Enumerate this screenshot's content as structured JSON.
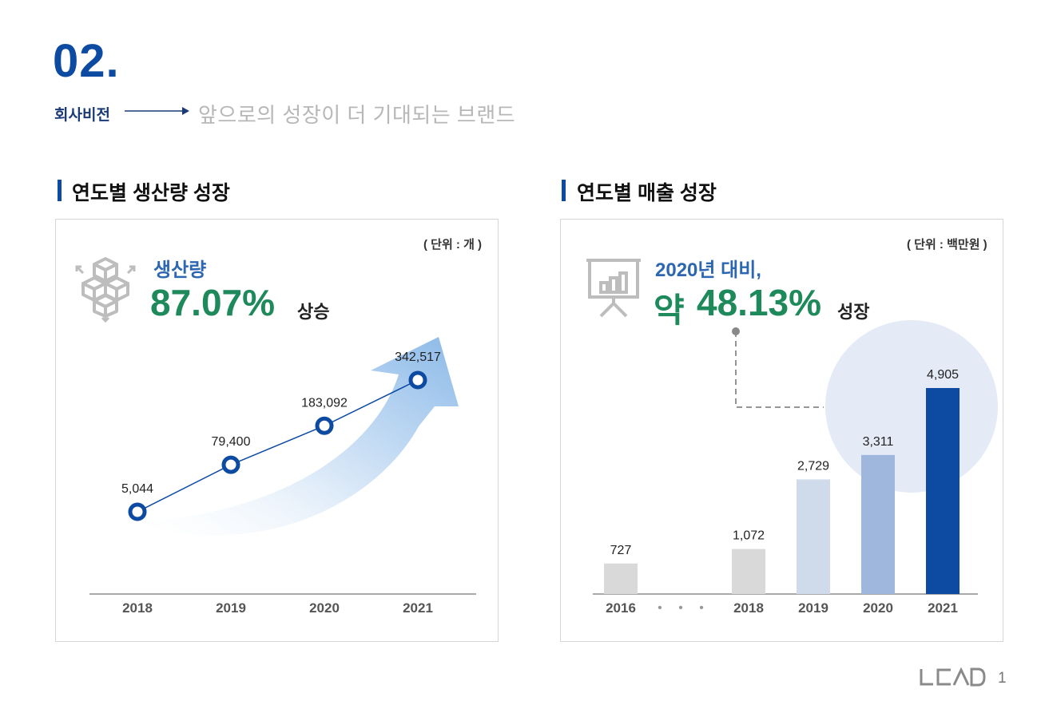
{
  "header": {
    "section_number": "02.",
    "vision_label": "회사비전",
    "vision_text": "앞으로의 성장이 더 기대되는 브랜드"
  },
  "left": {
    "title": "연도별 생산량 성장",
    "unit": "( 단위 : 개 )",
    "kpi_label": "생산량",
    "kpi_value": "87.07%",
    "kpi_suffix": "상승",
    "icon": "boxes-icon"
  },
  "right": {
    "title": "연도별 매출 성장",
    "unit": "( 단위 : 백만원 )",
    "kpi_label": "2020년 대비,",
    "kpi_prefix": "약",
    "kpi_value": "48.13%",
    "kpi_suffix": "성장",
    "icon": "presentation-board-icon",
    "ellipsis": "• • •"
  },
  "footer": {
    "logo": "LCAD",
    "page": "1"
  },
  "colors": {
    "brand_blue": "#0d4aa1",
    "kpi_green": "#1e8a5b",
    "bar_gray": "#d9d9d9",
    "bar_light": "#cfdaea",
    "bar_mid": "#9fb7dc",
    "bar_dark": "#0d4aa1",
    "highlight_circle": "#e4ebf6"
  },
  "chart_data": [
    {
      "type": "line",
      "categories": [
        "2018",
        "2019",
        "2020",
        "2021"
      ],
      "values": [
        5044,
        79400,
        183092,
        342517
      ],
      "value_labels": [
        "5,044",
        "79,400",
        "183,092",
        "342,517"
      ]
    },
    {
      "type": "bar",
      "categories": [
        "2016",
        "2018",
        "2019",
        "2020",
        "2021"
      ],
      "values": [
        727,
        1072,
        2729,
        3311,
        4905
      ],
      "value_labels": [
        "727",
        "1,072",
        "2,729",
        "3,311",
        "4,905"
      ]
    }
  ]
}
